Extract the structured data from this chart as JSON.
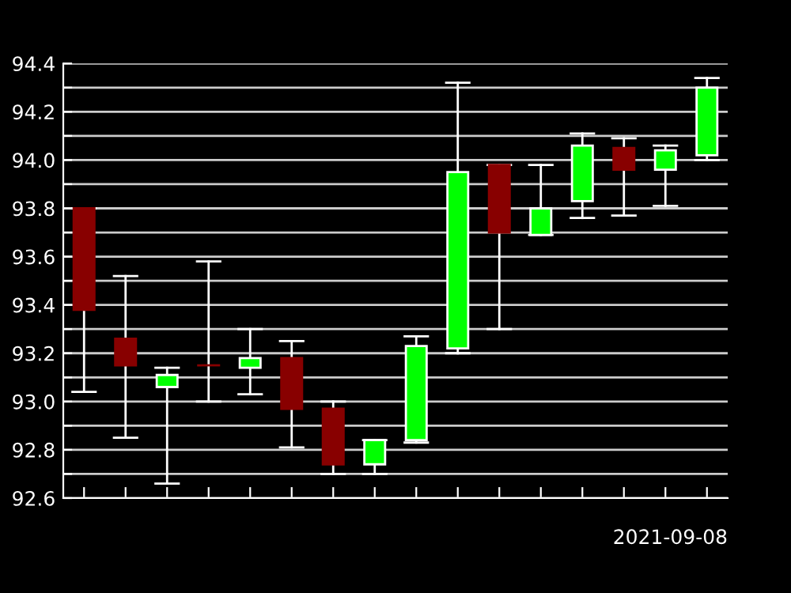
{
  "chart_data": {
    "type": "candlestick",
    "xlabel": "2021-09-08",
    "categories": [
      null,
      null,
      null,
      null,
      null,
      null,
      null,
      null,
      null,
      null,
      null,
      null,
      null,
      null,
      null,
      null
    ],
    "ohlc": [
      [
        93.8,
        93.8,
        93.04,
        93.38
      ],
      [
        93.26,
        93.52,
        92.85,
        93.15
      ],
      [
        93.06,
        93.14,
        92.66,
        93.11
      ],
      [
        93.15,
        93.58,
        93.0,
        93.15
      ],
      [
        93.14,
        93.3,
        93.03,
        93.18
      ],
      [
        93.18,
        93.25,
        92.81,
        92.97
      ],
      [
        92.97,
        93.0,
        92.7,
        92.74
      ],
      [
        92.74,
        92.84,
        92.7,
        92.84
      ],
      [
        92.84,
        93.27,
        92.83,
        93.23
      ],
      [
        93.22,
        94.32,
        93.2,
        93.95
      ],
      [
        93.98,
        93.98,
        93.3,
        93.7
      ],
      [
        93.69,
        93.98,
        93.69,
        93.8
      ],
      [
        93.83,
        94.11,
        93.76,
        94.06
      ],
      [
        94.05,
        94.09,
        93.77,
        93.96
      ],
      [
        93.96,
        94.06,
        93.81,
        94.04
      ],
      [
        94.02,
        94.34,
        94.0,
        94.3
      ]
    ],
    "colors": [
      "#880000",
      "#880000",
      "#00ff00",
      "#880000",
      "#00ff00",
      "#880000",
      "#880000",
      "#00ff00",
      "#00ff00",
      "#00ff00",
      "#880000",
      "#00ff00",
      "#00ff00",
      "#880000",
      "#00ff00",
      "#00ff00"
    ],
    "ylim": [
      92.6,
      94.4
    ],
    "yticks": [
      92.6,
      {
        "value": 92.7,
        "label": null
      },
      92.8,
      {
        "value": 92.9,
        "label": null
      },
      {
        "value": 93.0,
        "label": "93.0"
      },
      {
        "value": 93.1,
        "label": null
      },
      93.2,
      {
        "value": 93.3,
        "label": null
      },
      93.4,
      {
        "value": 93.5,
        "label": null
      },
      93.6,
      {
        "value": 93.7,
        "label": null
      },
      93.8,
      {
        "value": 93.9,
        "label": null
      },
      {
        "value": 94.0,
        "label": "94.0"
      },
      {
        "value": 94.1,
        "label": null
      },
      94.2,
      {
        "value": 94.3,
        "label": null
      },
      94.4
    ],
    "grid": "y",
    "tick_labels": "y"
  }
}
